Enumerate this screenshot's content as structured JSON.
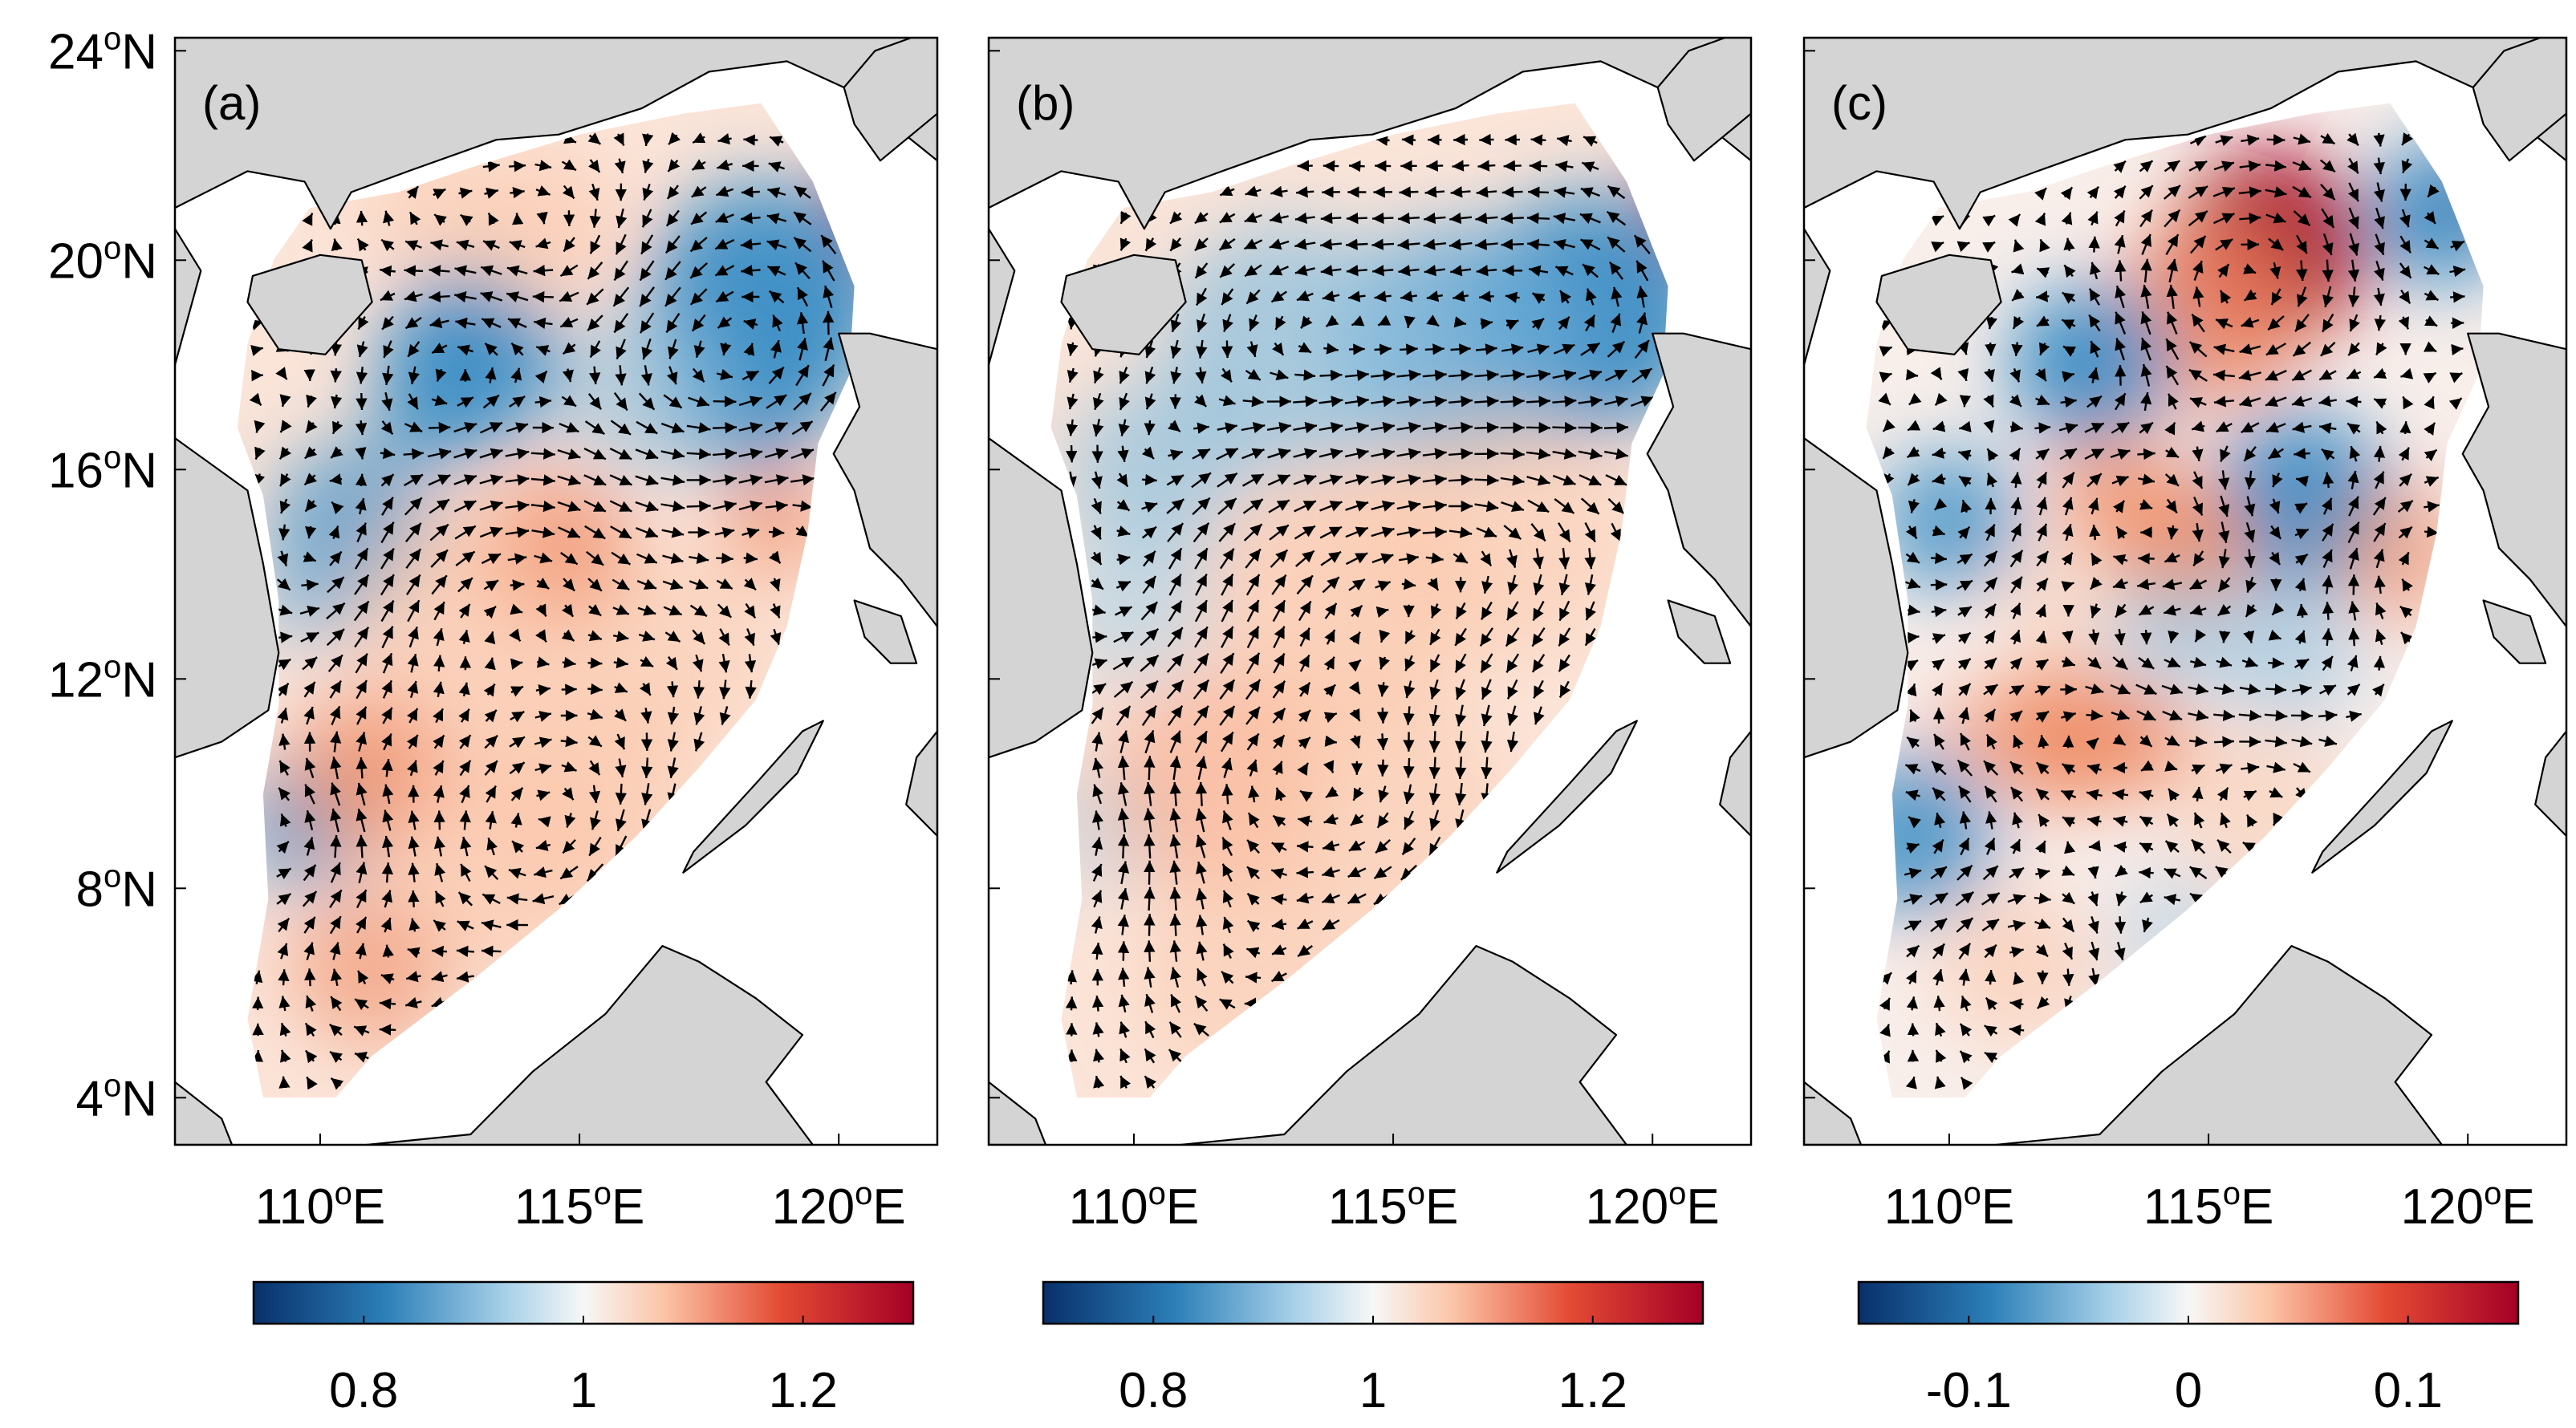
{
  "panels": [
    {
      "label": "(a)",
      "scheme": "a"
    },
    {
      "label": "(b)",
      "scheme": "b"
    },
    {
      "label": "(c)",
      "scheme": "c"
    }
  ],
  "lat_ticks": [
    {
      "deg": "24",
      "hemi": "N"
    },
    {
      "deg": "20",
      "hemi": "N"
    },
    {
      "deg": "16",
      "hemi": "N"
    },
    {
      "deg": "12",
      "hemi": "N"
    },
    {
      "deg": "8",
      "hemi": "N"
    },
    {
      "deg": "4",
      "hemi": "N"
    }
  ],
  "lon_ticks": [
    {
      "deg": "110",
      "hemi": "E"
    },
    {
      "deg": "115",
      "hemi": "E"
    },
    {
      "deg": "120",
      "hemi": "E"
    }
  ],
  "degree_symbol": "o",
  "colorbars": [
    {
      "ticks": [
        "0.8",
        "1",
        "1.2"
      ]
    },
    {
      "ticks": [
        "0.8",
        "1",
        "1.2"
      ]
    },
    {
      "ticks": [
        "-0.1",
        "0",
        "0.1"
      ]
    }
  ],
  "colors": {
    "land": "#d4d4d4",
    "blue_dark": "#08306b",
    "blue_mid": "#3b8ec6",
    "neutral": "#f7f7f7",
    "red_mid": "#ef8a62",
    "red_dark": "#a50026"
  }
}
